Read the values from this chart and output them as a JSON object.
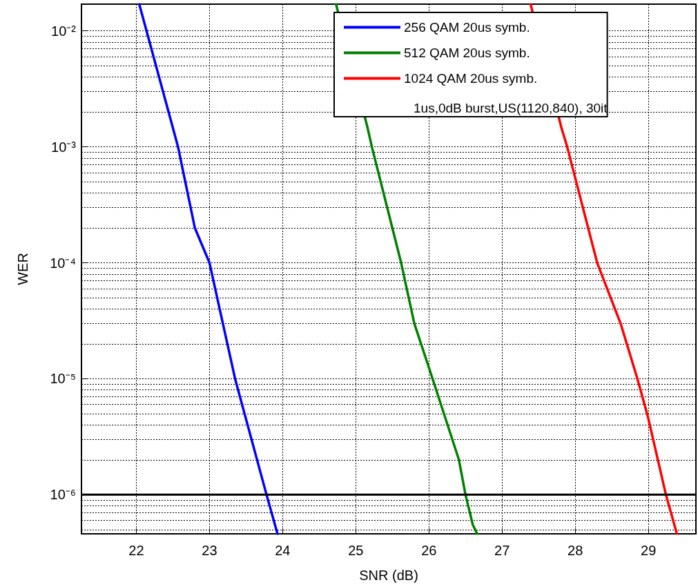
{
  "chart_data": {
    "type": "line",
    "xlabel": "SNR (dB)",
    "ylabel": "WER",
    "legend_title": "1us,0dB burst,US(1120,840), 30it",
    "series": [
      {
        "name": "256 QAM 20us symb.",
        "color": "#0000ff",
        "x": [
          22.04,
          22.57,
          22.8,
          23.0,
          23.35,
          23.78,
          23.93
        ],
        "values": [
          0.017,
          0.001,
          0.0002,
          0.0001,
          1e-05,
          1e-06,
          4.6e-07
        ]
      },
      {
        "name": "512 QAM 20us symb.",
        "color": "#008000",
        "x": [
          24.73,
          25.16,
          25.22,
          25.62,
          25.8,
          26.05,
          26.41,
          26.5,
          26.6,
          26.66
        ],
        "values": [
          0.017,
          0.00147,
          0.001,
          0.0001,
          3e-05,
          1e-05,
          2e-06,
          1e-06,
          5.5e-07,
          4.6e-07
        ]
      },
      {
        "name": "1024 QAM 20us symb.",
        "color": "#ff0000",
        "x": [
          27.39,
          27.81,
          27.89,
          28.3,
          28.62,
          28.85,
          28.99,
          29.24,
          29.39
        ],
        "values": [
          0.017,
          0.00147,
          0.001,
          0.0001,
          3e-05,
          1e-05,
          4.8e-06,
          1e-06,
          4.6e-07
        ]
      }
    ],
    "xlim": [
      21.25,
      29.65
    ],
    "xticks": [
      22,
      23,
      24,
      25,
      26,
      27,
      28,
      29
    ],
    "ylim": [
      4.6e-07,
      0.017
    ],
    "log": "y",
    "yticks": [
      {
        "value": 1e-06,
        "label": "10⁻⁶"
      },
      {
        "value": 1e-05,
        "label": "10⁻⁵"
      },
      {
        "value": 0.0001,
        "label": "10⁻⁴"
      },
      {
        "value": 0.001,
        "label": "10⁻³"
      },
      {
        "value": 0.01,
        "label": "10⁻²"
      }
    ],
    "ref_lines": [
      {
        "axis": "y",
        "value": 1e-06,
        "label": null,
        "color": "#000000",
        "line_style": "solid"
      }
    ],
    "grid": true,
    "legend": "top right",
    "marker": "none",
    "line_style": "solid"
  }
}
